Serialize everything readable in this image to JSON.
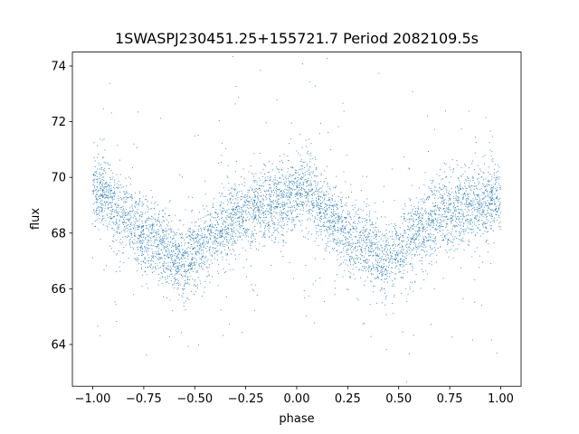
{
  "chart_data": {
    "type": "scatter",
    "title": "1SWASPJ230451.25+155721.7 Period 2082109.5s",
    "xlabel": "phase",
    "ylabel": "flux",
    "xlim": [
      -1.1,
      1.1
    ],
    "ylim": [
      62.5,
      74.5
    ],
    "xticks": [
      -1.0,
      -0.75,
      -0.5,
      -0.25,
      0.0,
      0.25,
      0.5,
      0.75,
      1.0
    ],
    "xtick_labels": [
      "−1.00",
      "−0.75",
      "−0.50",
      "−0.25",
      "0.00",
      "0.25",
      "0.50",
      "0.75",
      "1.00"
    ],
    "yticks": [
      64,
      66,
      68,
      70,
      72,
      74
    ],
    "ytick_labels": [
      "64",
      "66",
      "68",
      "70",
      "72",
      "74"
    ],
    "grid": false,
    "series": [
      {
        "point_color": "#1f77b4",
        "profile_phase": [
          0.0,
          0.05,
          0.1,
          0.15,
          0.2,
          0.25,
          0.3,
          0.35,
          0.4,
          0.45,
          0.5,
          0.55,
          0.6,
          0.65,
          0.7,
          0.75,
          0.8,
          0.85,
          0.9,
          0.95,
          1.0
        ],
        "profile_flux": [
          69.3,
          69.6,
          69.0,
          68.6,
          68.3,
          68.0,
          67.8,
          67.6,
          67.1,
          66.9,
          67.2,
          67.6,
          68.0,
          68.3,
          68.6,
          68.6,
          68.9,
          69.0,
          69.1,
          69.2,
          69.3
        ]
      }
    ]
  }
}
